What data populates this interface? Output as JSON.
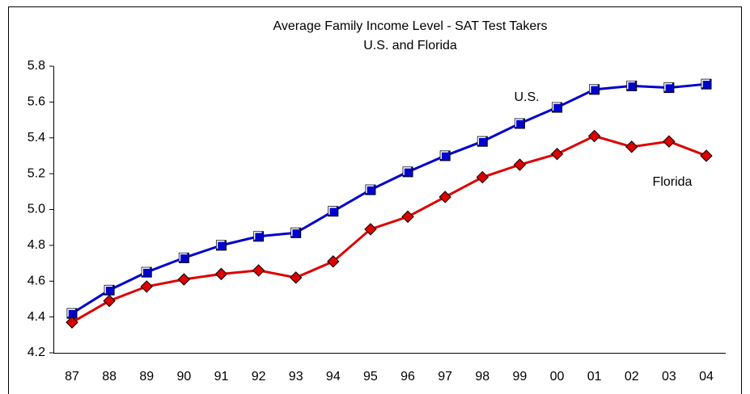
{
  "chart_data": {
    "type": "line",
    "title": "Average Family Income Level - SAT Test Takers",
    "subtitle": "U.S. and Florida",
    "categories": [
      "87",
      "88",
      "89",
      "90",
      "91",
      "92",
      "93",
      "94",
      "95",
      "96",
      "97",
      "98",
      "99",
      "00",
      "01",
      "02",
      "03",
      "04"
    ],
    "series": [
      {
        "name": "U.S.",
        "color": "#0000cc",
        "marker": "square",
        "values": [
          4.42,
          4.55,
          4.65,
          4.73,
          4.8,
          4.85,
          4.87,
          4.99,
          5.11,
          5.21,
          5.3,
          5.38,
          5.48,
          5.57,
          5.67,
          5.69,
          5.68,
          5.7
        ]
      },
      {
        "name": "Florida",
        "color": "#dd0000",
        "marker": "diamond",
        "values": [
          4.37,
          4.49,
          4.57,
          4.61,
          4.64,
          4.66,
          4.62,
          4.71,
          4.89,
          4.96,
          5.07,
          5.18,
          5.25,
          5.31,
          5.41,
          5.35,
          5.38,
          5.3
        ]
      }
    ],
    "ylim": [
      4.2,
      5.8
    ],
    "yticks": [
      4.2,
      4.4,
      4.6,
      4.8,
      {
        "value": 5.0,
        "label": "5.0"
      },
      5.2,
      5.4,
      5.6,
      5.8
    ]
  }
}
